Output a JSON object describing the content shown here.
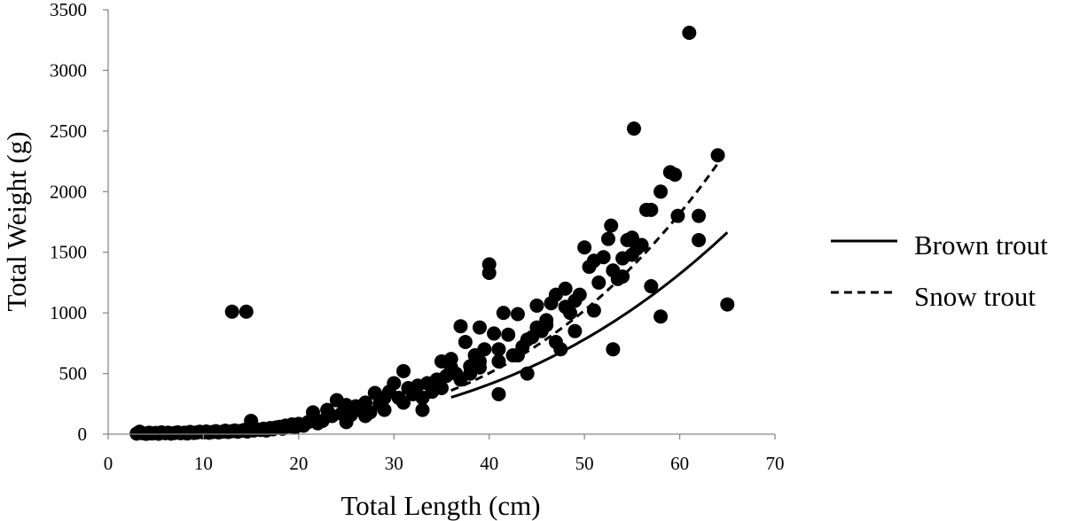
{
  "chart_data": {
    "type": "scatter",
    "title": "",
    "xlabel": "Total Length (cm)",
    "ylabel": "Total Weight (g)",
    "xlim": [
      0,
      70
    ],
    "ylim": [
      0,
      3500
    ],
    "x_ticks": [
      0,
      10,
      20,
      30,
      40,
      50,
      60,
      70
    ],
    "y_ticks": [
      0,
      500,
      1000,
      1500,
      2000,
      2500,
      3000,
      3500
    ],
    "grid": false,
    "legend_position": "right",
    "marker_color": "#000000",
    "points": [
      [
        3,
        5
      ],
      [
        3.3,
        20
      ],
      [
        3.6,
        8
      ],
      [
        4,
        3
      ],
      [
        4.3,
        12
      ],
      [
        4.6,
        6
      ],
      [
        5,
        10
      ],
      [
        5.3,
        4
      ],
      [
        5.6,
        15
      ],
      [
        6,
        8
      ],
      [
        6.3,
        12
      ],
      [
        6.6,
        5
      ],
      [
        7,
        10
      ],
      [
        7.3,
        15
      ],
      [
        7.6,
        8
      ],
      [
        8,
        12
      ],
      [
        8.3,
        6
      ],
      [
        8.6,
        18
      ],
      [
        9,
        10
      ],
      [
        9.3,
        14
      ],
      [
        9.6,
        20
      ],
      [
        10,
        15
      ],
      [
        10.3,
        22
      ],
      [
        10.6,
        12
      ],
      [
        11,
        18
      ],
      [
        11.3,
        25
      ],
      [
        11.6,
        15
      ],
      [
        12,
        20
      ],
      [
        12.3,
        28
      ],
      [
        12.6,
        18
      ],
      [
        13,
        25
      ],
      [
        13.3,
        30
      ],
      [
        13.6,
        20
      ],
      [
        14,
        28
      ],
      [
        14.3,
        35
      ],
      [
        14.6,
        22
      ],
      [
        15,
        110
      ],
      [
        15.3,
        30
      ],
      [
        15.6,
        40
      ],
      [
        16,
        35
      ],
      [
        16.3,
        45
      ],
      [
        16.6,
        30
      ],
      [
        17,
        50
      ],
      [
        17.3,
        40
      ],
      [
        17.6,
        55
      ],
      [
        18,
        60
      ],
      [
        18.3,
        45
      ],
      [
        18.6,
        70
      ],
      [
        19,
        65
      ],
      [
        19.3,
        80
      ],
      [
        19.6,
        55
      ],
      [
        20,
        85
      ],
      [
        20.5,
        70
      ],
      [
        21,
        100
      ],
      [
        21.5,
        180
      ],
      [
        22,
        90
      ],
      [
        22.5,
        110
      ],
      [
        23,
        200
      ],
      [
        23.5,
        150
      ],
      [
        24,
        280
      ],
      [
        24.5,
        170
      ],
      [
        25,
        240
      ],
      [
        25.5,
        160
      ],
      [
        26,
        230
      ],
      [
        26.5,
        200
      ],
      [
        27,
        260
      ],
      [
        27.5,
        180
      ],
      [
        28,
        340
      ],
      [
        28.5,
        250
      ],
      [
        29,
        300
      ],
      [
        29.5,
        350
      ],
      [
        30,
        420
      ],
      [
        30.5,
        300
      ],
      [
        31,
        520
      ],
      [
        31.5,
        380
      ],
      [
        32,
        330
      ],
      [
        32.5,
        400
      ],
      [
        33,
        200
      ],
      [
        33.5,
        420
      ],
      [
        34,
        350
      ],
      [
        34.5,
        450
      ],
      [
        35,
        600
      ],
      [
        35.5,
        480
      ],
      [
        36,
        550
      ],
      [
        36.5,
        500
      ],
      [
        37,
        890
      ],
      [
        37.5,
        760
      ],
      [
        38,
        560
      ],
      [
        38.5,
        650
      ],
      [
        39,
        880
      ],
      [
        39.5,
        700
      ],
      [
        40,
        1400
      ],
      [
        40,
        1330
      ],
      [
        40.5,
        830
      ],
      [
        41,
        330
      ],
      [
        41.5,
        1000
      ],
      [
        42,
        820
      ],
      [
        42.5,
        650
      ],
      [
        43,
        990
      ],
      [
        43.5,
        720
      ],
      [
        44,
        500
      ],
      [
        44.5,
        800
      ],
      [
        45,
        1060
      ],
      [
        45.5,
        850
      ],
      [
        46,
        940
      ],
      [
        46.5,
        1080
      ],
      [
        47,
        1150
      ],
      [
        47.5,
        700
      ],
      [
        48,
        1200
      ],
      [
        48.5,
        1000
      ],
      [
        49,
        850
      ],
      [
        49.5,
        1150
      ],
      [
        50,
        1540
      ],
      [
        50.5,
        1380
      ],
      [
        51,
        1430
      ],
      [
        51.5,
        1250
      ],
      [
        52,
        1460
      ],
      [
        52.5,
        1610
      ],
      [
        52.8,
        1720
      ],
      [
        53,
        700
      ],
      [
        53.5,
        1280
      ],
      [
        54,
        1450
      ],
      [
        54.5,
        1600
      ],
      [
        55,
        1620
      ],
      [
        55.2,
        2520
      ],
      [
        55.5,
        1530
      ],
      [
        56,
        1560
      ],
      [
        56.5,
        1850
      ],
      [
        57,
        1850
      ],
      [
        57,
        1220
      ],
      [
        58,
        2000
      ],
      [
        58,
        970
      ],
      [
        59,
        2160
      ],
      [
        59.5,
        2140
      ],
      [
        59.8,
        1800
      ],
      [
        61,
        3310
      ],
      [
        62,
        1800
      ],
      [
        62,
        1600
      ],
      [
        64,
        2300
      ],
      [
        65,
        1070
      ],
      [
        13,
        1010
      ],
      [
        14.5,
        1010
      ],
      [
        36,
        620
      ],
      [
        38,
        500
      ],
      [
        39,
        600
      ],
      [
        41,
        700
      ],
      [
        43,
        650
      ],
      [
        45,
        880
      ],
      [
        47,
        760
      ],
      [
        49,
        1100
      ],
      [
        51,
        1020
      ],
      [
        53,
        1350
      ],
      [
        54,
        1300
      ],
      [
        55,
        1480
      ],
      [
        25,
        100
      ],
      [
        27,
        150
      ],
      [
        29,
        200
      ],
      [
        31,
        260
      ],
      [
        33,
        300
      ],
      [
        35,
        380
      ],
      [
        37,
        450
      ],
      [
        39,
        550
      ],
      [
        41,
        600
      ],
      [
        44,
        780
      ],
      [
        46,
        900
      ],
      [
        48,
        1050
      ]
    ],
    "series": [
      {
        "name": "Brown trout",
        "line_style": "solid",
        "x_range": [
          36,
          65
        ],
        "a": 0.01,
        "b": 2.88
      },
      {
        "name": "Snow trout",
        "line_style": "dashed",
        "x_range": [
          36,
          64
        ],
        "a": 0.0042,
        "b": 3.17
      }
    ]
  }
}
